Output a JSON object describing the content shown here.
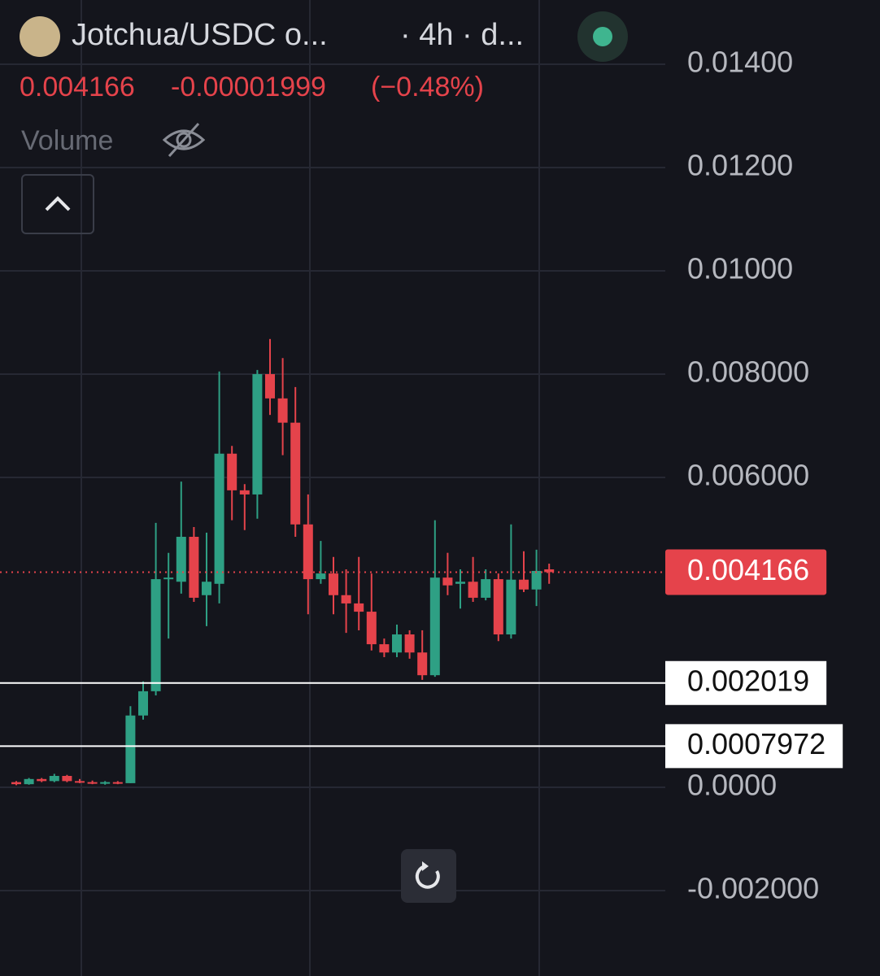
{
  "header": {
    "pair": "Jotchua/USDC o...",
    "interval": "· 4h · d...",
    "change": -1.999e-05,
    "change_percent": "(−0.48%)",
    "volume_label": "Volume"
  },
  "chart_data": {
    "type": "candlestick",
    "up_color": "#2ea084",
    "down_color": "#e5434b",
    "open": [
      0.0001,
      6e-05,
      0.00016,
      0.00012,
      0.00022,
      0.00012,
      0.0001,
      8e-05,
      0.0001,
      8e-05,
      0.00139,
      0.00186,
      0.00403,
      0.00398,
      0.00485,
      0.00372,
      0.00394,
      0.00646,
      0.00575,
      0.00567,
      0.008,
      0.00753,
      0.00706,
      0.00509,
      0.00403,
      0.00414,
      0.00372,
      0.00356,
      0.0034,
      0.00277,
      0.00261,
      0.00296,
      0.00261,
      0.00217,
      0.00406,
      0.00394,
      0.00398,
      0.00367,
      0.00403,
      0.00296,
      0.00402,
      0.00383,
      0.00422
    ],
    "high": [
      0.00012,
      0.00018,
      0.00018,
      0.00026,
      0.00024,
      0.00016,
      0.00013,
      0.00012,
      0.00012,
      0.00157,
      0.00205,
      0.00512,
      0.00454,
      0.00592,
      0.00504,
      0.00493,
      0.00805,
      0.00661,
      0.00587,
      0.00808,
      0.00868,
      0.00831,
      0.00775,
      0.00567,
      0.00477,
      0.00446,
      0.00422,
      0.00446,
      0.00414,
      0.00288,
      0.00315,
      0.00304,
      0.00304,
      0.00517,
      0.00454,
      0.00422,
      0.00446,
      0.00422,
      0.00414,
      0.00509,
      0.00457,
      0.0046,
      0.00433
    ],
    "low": [
      4e-05,
      5e-05,
      0.0001,
      0.0001,
      0.0001,
      8e-05,
      6e-05,
      5e-05,
      6e-05,
      8e-05,
      0.00131,
      0.00178,
      0.00288,
      0.00375,
      0.00359,
      0.00312,
      0.00356,
      0.00517,
      0.00498,
      0.0052,
      0.00721,
      0.00643,
      0.00485,
      0.00335,
      0.00394,
      0.00335,
      0.00299,
      0.00304,
      0.00265,
      0.00252,
      0.00252,
      0.00249,
      0.00208,
      0.00214,
      0.00372,
      0.00346,
      0.00359,
      0.00362,
      0.00283,
      0.00288,
      0.00378,
      0.00351,
      0.00394
    ],
    "close": [
      6e-05,
      0.00016,
      0.00012,
      0.00022,
      0.00012,
      0.0001,
      8e-05,
      0.0001,
      8e-05,
      0.00139,
      0.00186,
      0.00403,
      0.00406,
      0.00485,
      0.00367,
      0.00398,
      0.00646,
      0.00575,
      0.00567,
      0.008,
      0.00753,
      0.00706,
      0.00509,
      0.00403,
      0.00414,
      0.00372,
      0.00356,
      0.0034,
      0.00277,
      0.00261,
      0.00296,
      0.00261,
      0.00217,
      0.00406,
      0.00391,
      0.00398,
      0.00367,
      0.00403,
      0.00296,
      0.00402,
      0.00383,
      0.00419,
      0.004166
    ],
    "last_price": 0.004166,
    "price_lines": [
      0.002019,
      0.0007972
    ],
    "ylim": [
      -0.003654,
      0.015244
    ],
    "yticks": [
      {
        "value": 0.014,
        "label": "0.01400"
      },
      {
        "value": 0.012,
        "label": "0.01200"
      },
      {
        "value": 0.01,
        "label": "0.01000"
      },
      {
        "value": 0.008,
        "label": "0.008000"
      },
      {
        "value": 0.006,
        "label": "0.006000"
      },
      {
        "value": 0,
        "label": "0.0000"
      },
      {
        "value": -0.002,
        "label": "-0.002000"
      }
    ],
    "grid": true
  }
}
